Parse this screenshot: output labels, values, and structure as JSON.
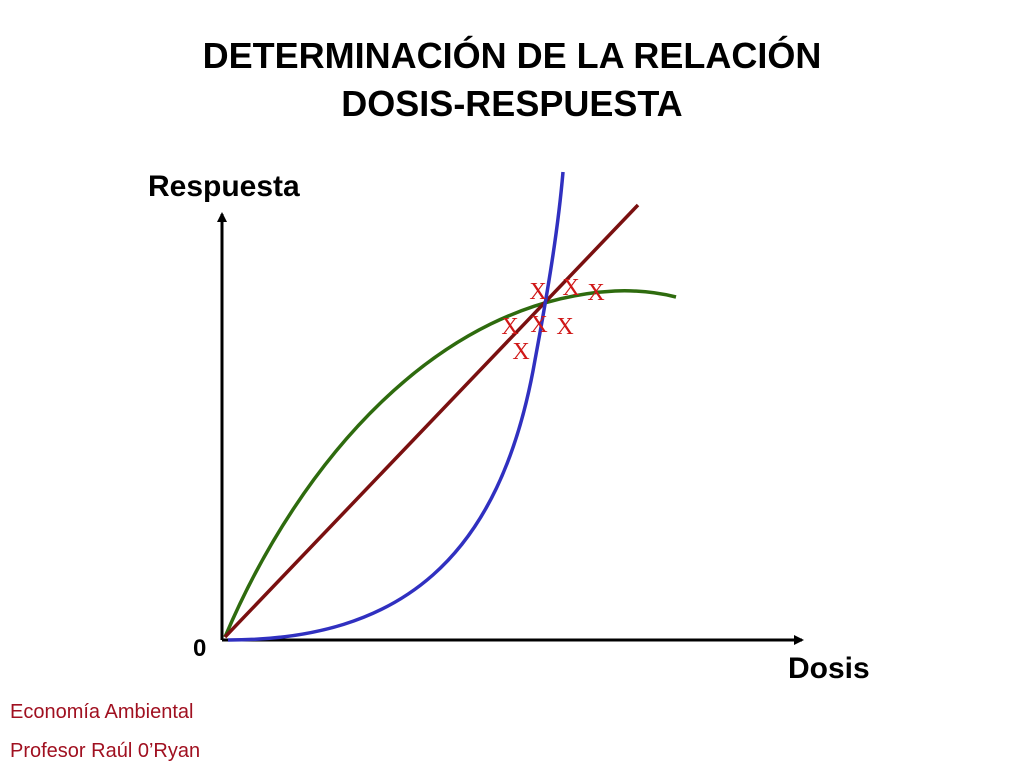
{
  "title": {
    "line1": "DETERMINACIÓN DE LA RELACIÓN",
    "line2": "DOSIS-RESPUESTA"
  },
  "y_axis_label": "Respuesta",
  "x_axis_label": "Dosis",
  "origin_label": "0",
  "marks": [
    "X",
    "X",
    "X",
    "X",
    "X",
    "X",
    "X"
  ],
  "footer": {
    "line1": "Economía Ambiental",
    "line2": "Profesor Raúl 0’Ryan"
  }
}
